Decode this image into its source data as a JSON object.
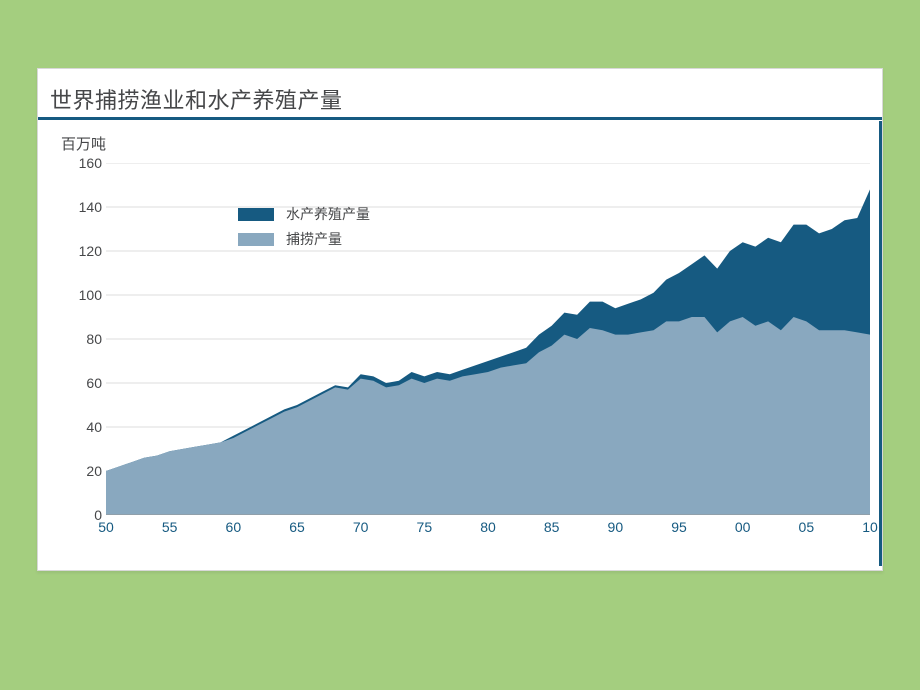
{
  "chart": {
    "type": "stacked-area",
    "title": "世界捕捞渔业和水产养殖产量",
    "y_unit_label": "百万吨",
    "background_color": "#ffffff",
    "page_background": "#a4ce7f",
    "accent_color": "#165a81",
    "grid_color": "#b9b9b9",
    "text_color": "#464749",
    "title_fontsize": 22,
    "label_fontsize": 14,
    "y": {
      "min": 0,
      "max": 160,
      "tick_step": 20,
      "ticks": [
        0,
        20,
        40,
        60,
        80,
        100,
        120,
        140,
        160
      ]
    },
    "x": {
      "min": 50,
      "max": 10,
      "step_years": 5,
      "ticks": [
        "50",
        "55",
        "60",
        "65",
        "70",
        "75",
        "80",
        "85",
        "90",
        "95",
        "00",
        "05",
        "10"
      ]
    },
    "legend": {
      "position": "upper-left-inset",
      "items": [
        {
          "label": "水产养殖产量",
          "color": "#165a81"
        },
        {
          "label": "捕捞产量",
          "color": "#89a8bf"
        }
      ]
    },
    "series": {
      "x_points": [
        50,
        51,
        52,
        53,
        54,
        55,
        56,
        57,
        58,
        59,
        60,
        61,
        62,
        63,
        64,
        65,
        66,
        67,
        68,
        69,
        70,
        71,
        72,
        73,
        74,
        75,
        76,
        77,
        78,
        79,
        80,
        81,
        82,
        83,
        84,
        85,
        86,
        87,
        88,
        89,
        90,
        91,
        92,
        93,
        94,
        95,
        96,
        97,
        98,
        99,
        100,
        101,
        102,
        103,
        104,
        105,
        106,
        107,
        108,
        109,
        110
      ],
      "capture": [
        20,
        22,
        24,
        26,
        27,
        29,
        30,
        31,
        32,
        33,
        35,
        38,
        41,
        44,
        47,
        49,
        52,
        55,
        58,
        57,
        62,
        61,
        58,
        59,
        62,
        60,
        62,
        61,
        63,
        64,
        65,
        67,
        68,
        69,
        74,
        77,
        82,
        80,
        85,
        84,
        82,
        82,
        83,
        84,
        88,
        88,
        90,
        90,
        83,
        88,
        90,
        86,
        88,
        84,
        90,
        88,
        84,
        84,
        84,
        83,
        82
      ],
      "total": [
        20,
        22,
        24,
        26,
        27,
        29,
        30,
        31,
        32,
        33,
        36,
        39,
        42,
        45,
        48,
        50,
        53,
        56,
        59,
        58,
        64,
        63,
        60,
        61,
        65,
        63,
        65,
        64,
        66,
        68,
        70,
        72,
        74,
        76,
        82,
        86,
        92,
        91,
        97,
        97,
        94,
        96,
        98,
        101,
        107,
        110,
        114,
        118,
        112,
        120,
        124,
        122,
        126,
        124,
        132,
        132,
        128,
        130,
        134,
        135,
        148
      ],
      "capture_color": "#89a8bf",
      "aquaculture_color": "#165a81"
    }
  }
}
